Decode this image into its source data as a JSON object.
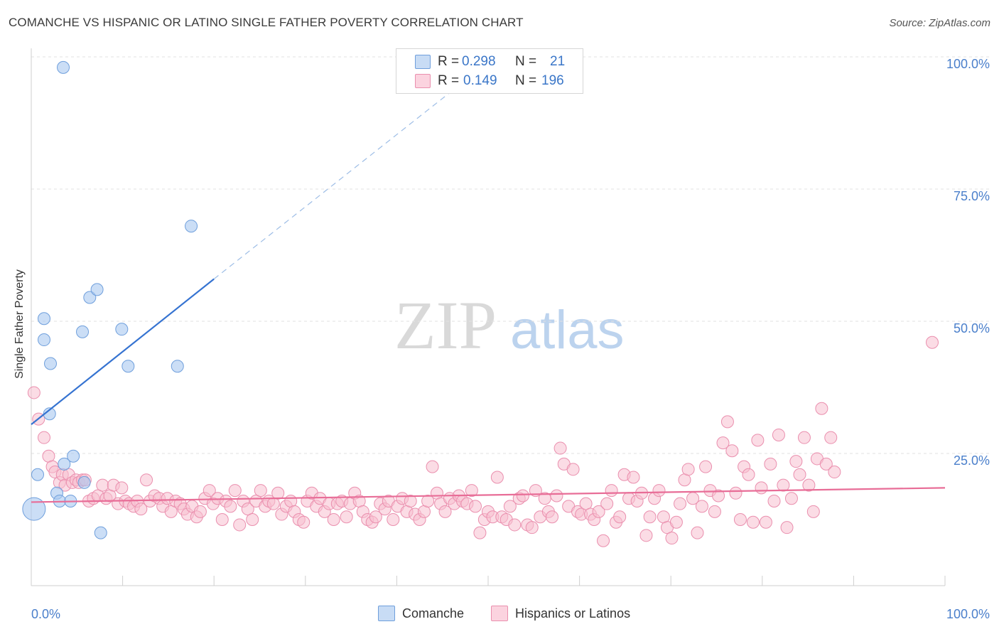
{
  "header": {
    "title": "COMANCHE VS HISPANIC OR LATINO SINGLE FATHER POVERTY CORRELATION CHART",
    "source": "Source: ZipAtlas.com"
  },
  "watermark": {
    "zip": "ZIP",
    "atlas": "atlas"
  },
  "legend": {
    "series": [
      {
        "r_label": "R =",
        "r_value": "0.298",
        "n_label": "N =",
        "n_value": "21",
        "color": "#a9c8f0",
        "edge": "#6f9fdc"
      },
      {
        "r_label": "R =",
        "r_value": "0.149",
        "n_label": "N =",
        "n_value": "196",
        "color": "#f7bfd0",
        "edge": "#ea8fae"
      }
    ]
  },
  "bottom_legend": {
    "items": [
      {
        "label": "Comanche",
        "color": "#a9c8f0",
        "edge": "#6f9fdc"
      },
      {
        "label": "Hispanics or Latinos",
        "color": "#f7bfd0",
        "edge": "#ea8fae"
      }
    ]
  },
  "chart_data": {
    "type": "scatter",
    "title": "COMANCHE VS HISPANIC OR LATINO SINGLE FATHER POVERTY CORRELATION CHART",
    "xlabel": "",
    "ylabel": "Single Father Poverty",
    "xlim": [
      0,
      100
    ],
    "ylim": [
      0,
      100
    ],
    "x_tick_labels": [
      "0.0%",
      "100.0%"
    ],
    "y_ticks": [
      25,
      50,
      75,
      100
    ],
    "y_tick_labels": [
      "25.0%",
      "50.0%",
      "75.0%",
      "100.0%"
    ],
    "grid": true,
    "series": [
      {
        "name": "Comanche",
        "color": "#a9c8f0",
        "edge": "#6f9fdc",
        "line_color": "#3573d1",
        "points": [
          [
            3.5,
            98
          ],
          [
            0.3,
            14.5
          ],
          [
            0.7,
            21
          ],
          [
            1.4,
            46.5
          ],
          [
            1.4,
            50.5
          ],
          [
            2.1,
            42
          ],
          [
            2,
            32.5
          ],
          [
            2.8,
            17.5
          ],
          [
            3.1,
            16
          ],
          [
            3.6,
            23
          ],
          [
            4.3,
            16
          ],
          [
            4.6,
            24.5
          ],
          [
            5.6,
            48
          ],
          [
            5.8,
            19.5
          ],
          [
            6.4,
            54.5
          ],
          [
            7.2,
            56
          ],
          [
            7.6,
            10
          ],
          [
            9.9,
            48.5
          ],
          [
            10.6,
            41.5
          ],
          [
            16,
            41.5
          ],
          [
            17.5,
            68
          ]
        ],
        "trend": {
          "x0": 0,
          "y0": 30.5,
          "x1": 20,
          "y1": 58,
          "dash_to_x": 46,
          "dash_to_y": 93.5
        }
      },
      {
        "name": "Hispanics or Latinos",
        "color": "#f7bfd0",
        "edge": "#ea8fae",
        "line_color": "#e86d97",
        "points": [
          [
            0.3,
            36.5
          ],
          [
            0.8,
            31.5
          ],
          [
            1.4,
            28
          ],
          [
            1.9,
            24.5
          ],
          [
            2.3,
            22.5
          ],
          [
            2.6,
            21.5
          ],
          [
            3.1,
            19.5
          ],
          [
            3.4,
            21
          ],
          [
            3.7,
            19
          ],
          [
            4.1,
            21
          ],
          [
            4.5,
            19.5
          ],
          [
            4.9,
            20
          ],
          [
            5.2,
            19.5
          ],
          [
            5.6,
            20
          ],
          [
            5.9,
            20
          ],
          [
            6.3,
            16
          ],
          [
            6.8,
            16.5
          ],
          [
            7.3,
            17
          ],
          [
            7.8,
            19
          ],
          [
            8.2,
            16.5
          ],
          [
            8.6,
            17
          ],
          [
            9,
            19
          ],
          [
            9.5,
            15.5
          ],
          [
            9.9,
            18.5
          ],
          [
            10.3,
            16
          ],
          [
            10.7,
            15.5
          ],
          [
            11.2,
            15
          ],
          [
            11.6,
            16
          ],
          [
            12,
            14.5
          ],
          [
            12.6,
            20
          ],
          [
            13,
            16
          ],
          [
            13.5,
            17
          ],
          [
            14,
            16.5
          ],
          [
            14.4,
            15
          ],
          [
            14.9,
            16.5
          ],
          [
            15.3,
            14
          ],
          [
            15.8,
            16
          ],
          [
            16.3,
            15.5
          ],
          [
            16.7,
            14.5
          ],
          [
            17.1,
            13.5
          ],
          [
            17.6,
            15
          ],
          [
            18.1,
            13
          ],
          [
            18.5,
            14
          ],
          [
            19,
            16.5
          ],
          [
            19.5,
            18
          ],
          [
            19.9,
            15.5
          ],
          [
            20.4,
            16.5
          ],
          [
            20.9,
            12.5
          ],
          [
            21.3,
            16
          ],
          [
            21.8,
            15
          ],
          [
            22.3,
            18
          ],
          [
            22.8,
            11.5
          ],
          [
            23.2,
            16
          ],
          [
            23.7,
            14.5
          ],
          [
            24.2,
            12.5
          ],
          [
            24.6,
            16
          ],
          [
            25.1,
            18
          ],
          [
            25.6,
            15
          ],
          [
            26,
            16
          ],
          [
            26.5,
            15.5
          ],
          [
            27,
            17.5
          ],
          [
            27.4,
            13.5
          ],
          [
            27.9,
            15
          ],
          [
            28.4,
            16
          ],
          [
            28.8,
            14
          ],
          [
            29.3,
            12.5
          ],
          [
            29.8,
            12
          ],
          [
            30.2,
            16
          ],
          [
            30.7,
            17.5
          ],
          [
            31.2,
            15
          ],
          [
            31.6,
            16.5
          ],
          [
            32.1,
            14
          ],
          [
            32.6,
            15.5
          ],
          [
            33.1,
            12.5
          ],
          [
            33.5,
            15.5
          ],
          [
            34,
            16
          ],
          [
            34.5,
            13
          ],
          [
            34.9,
            15.5
          ],
          [
            35.4,
            17.5
          ],
          [
            35.9,
            16
          ],
          [
            36.3,
            14
          ],
          [
            36.8,
            12.5
          ],
          [
            37.3,
            12
          ],
          [
            37.7,
            13
          ],
          [
            38.2,
            15.5
          ],
          [
            38.7,
            14.5
          ],
          [
            39.1,
            16
          ],
          [
            39.6,
            12.5
          ],
          [
            40.1,
            15
          ],
          [
            40.6,
            16.5
          ],
          [
            41.1,
            14
          ],
          [
            41.5,
            16
          ],
          [
            42,
            13.5
          ],
          [
            42.5,
            12.5
          ],
          [
            43,
            14
          ],
          [
            43.4,
            16
          ],
          [
            43.9,
            22.5
          ],
          [
            44.4,
            17.5
          ],
          [
            44.8,
            15.5
          ],
          [
            45.3,
            14
          ],
          [
            45.8,
            16.5
          ],
          [
            46.3,
            15.5
          ],
          [
            46.8,
            17
          ],
          [
            47.2,
            16
          ],
          [
            47.7,
            15.5
          ],
          [
            48.2,
            18
          ],
          [
            48.6,
            15
          ],
          [
            49.1,
            10
          ],
          [
            49.6,
            12.5
          ],
          [
            50,
            14
          ],
          [
            50.5,
            13
          ],
          [
            51,
            20.5
          ],
          [
            51.5,
            13
          ],
          [
            52,
            12.5
          ],
          [
            52.4,
            15
          ],
          [
            52.9,
            11.5
          ],
          [
            53.4,
            16.5
          ],
          [
            53.8,
            17
          ],
          [
            54.3,
            11.5
          ],
          [
            54.8,
            11
          ],
          [
            55.2,
            18
          ],
          [
            55.7,
            13
          ],
          [
            56.2,
            16.5
          ],
          [
            56.6,
            14
          ],
          [
            57,
            13
          ],
          [
            57.5,
            17
          ],
          [
            57.9,
            26
          ],
          [
            58.3,
            23
          ],
          [
            58.8,
            15
          ],
          [
            59.3,
            22
          ],
          [
            59.8,
            14
          ],
          [
            60.2,
            13.5
          ],
          [
            60.7,
            15.5
          ],
          [
            61.2,
            13.5
          ],
          [
            61.6,
            12.5
          ],
          [
            62.1,
            14
          ],
          [
            62.6,
            8.5
          ],
          [
            63,
            15.5
          ],
          [
            63.5,
            18
          ],
          [
            64,
            12
          ],
          [
            64.4,
            13
          ],
          [
            64.9,
            21
          ],
          [
            65.4,
            16.5
          ],
          [
            65.9,
            20.5
          ],
          [
            66.3,
            16
          ],
          [
            66.8,
            17.5
          ],
          [
            67.3,
            9.5
          ],
          [
            67.7,
            13
          ],
          [
            68.2,
            16.5
          ],
          [
            68.7,
            18
          ],
          [
            69.2,
            13
          ],
          [
            69.6,
            11
          ],
          [
            70.1,
            9
          ],
          [
            70.6,
            12
          ],
          [
            71,
            15.5
          ],
          [
            71.5,
            20
          ],
          [
            71.9,
            22
          ],
          [
            72.4,
            16.5
          ],
          [
            72.9,
            10
          ],
          [
            73.4,
            15
          ],
          [
            73.8,
            22.5
          ],
          [
            74.3,
            18
          ],
          [
            74.8,
            14
          ],
          [
            75.2,
            17
          ],
          [
            75.7,
            27
          ],
          [
            76.2,
            31
          ],
          [
            76.7,
            25.5
          ],
          [
            77.1,
            17.5
          ],
          [
            77.6,
            12.5
          ],
          [
            78,
            22.5
          ],
          [
            78.5,
            21
          ],
          [
            79,
            12
          ],
          [
            79.5,
            27.5
          ],
          [
            79.9,
            18.5
          ],
          [
            80.4,
            12
          ],
          [
            80.9,
            23
          ],
          [
            81.3,
            16
          ],
          [
            81.8,
            28.5
          ],
          [
            82.3,
            19
          ],
          [
            82.7,
            11
          ],
          [
            83.2,
            16.5
          ],
          [
            83.7,
            23.5
          ],
          [
            84.1,
            21
          ],
          [
            84.6,
            28
          ],
          [
            85.1,
            19
          ],
          [
            85.6,
            14
          ],
          [
            86,
            24
          ],
          [
            86.5,
            33.5
          ],
          [
            87,
            23
          ],
          [
            87.5,
            28
          ],
          [
            87.9,
            21.5
          ],
          [
            98.6,
            46
          ]
        ],
        "trend": {
          "x0": 0,
          "y0": 15.8,
          "x1": 100,
          "y1": 18.5
        }
      }
    ]
  }
}
